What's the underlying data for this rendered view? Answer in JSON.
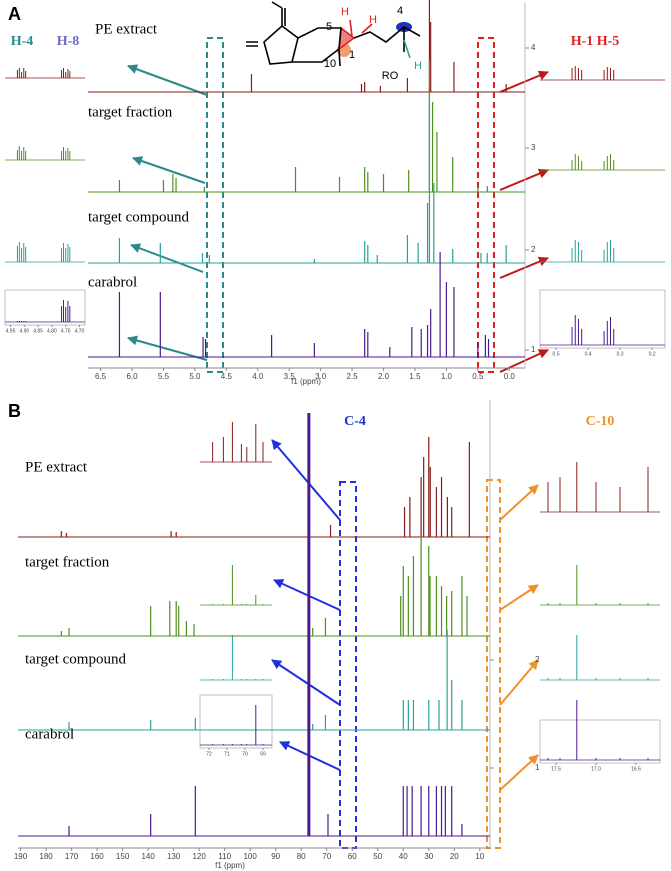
{
  "chart_data": [
    {
      "type": "spectrum",
      "panel": "A",
      "x_label": "f1 (ppm)",
      "xlim": [
        6.7,
        -0.25
      ],
      "xticks": [
        6.5,
        {
          "value": 6,
          "label": "6.0"
        },
        5.5,
        {
          "value": 5,
          "label": "5.0"
        },
        4.5,
        {
          "value": 4,
          "label": "4.0"
        },
        3.5,
        {
          "value": 3,
          "label": "3.0"
        },
        2.5,
        {
          "value": 2,
          "label": "2.0"
        },
        1.5,
        {
          "value": 1,
          "label": "1.0"
        },
        0.5,
        {
          "value": 0,
          "label": "0.0"
        }
      ],
      "yticks": [
        1,
        2,
        3,
        4
      ],
      "series": [
        {
          "name": "PE extract",
          "color": "#8b1a1a",
          "x": [
            4.1,
            2.35,
            2.3,
            2.05,
            1.62,
            1.27,
            1.25,
            0.88,
            0.05
          ],
          "values": [
            18,
            8,
            10,
            6,
            14,
            92,
            70,
            30,
            8
          ]
        },
        {
          "name": "target fraction",
          "color": "#4e8f1e",
          "x": [
            6.2,
            5.5,
            5.35,
            5.3,
            4.85,
            3.4,
            2.7,
            2.3,
            2.25,
            2.0,
            1.6,
            1.27,
            1.22,
            1.15,
            0.9,
            0.5,
            0.35
          ],
          "values": [
            12,
            12,
            18,
            14,
            5,
            25,
            15,
            25,
            20,
            18,
            22,
            132,
            90,
            60,
            35,
            6,
            6
          ]
        },
        {
          "name": "target compound",
          "color": "#2aa19a",
          "x": [
            6.2,
            5.55,
            4.88,
            4.77,
            3.1,
            2.3,
            2.25,
            2.1,
            1.62,
            1.45,
            1.3,
            1.27,
            1.2,
            0.9,
            0.45,
            0.35,
            0.05
          ],
          "values": [
            25,
            20,
            10,
            8,
            4,
            22,
            18,
            8,
            28,
            20,
            60,
            170,
            80,
            14,
            10,
            10,
            18
          ]
        },
        {
          "name": "carabrol",
          "color": "#4b1a8e",
          "x": [
            6.2,
            5.55,
            4.87,
            4.83,
            3.78,
            3.1,
            2.3,
            2.25,
            1.9,
            1.55,
            1.4,
            1.3,
            1.25,
            1.1,
            1.0,
            0.88,
            0.5,
            0.38,
            0.33
          ],
          "values": [
            65,
            65,
            20,
            18,
            22,
            14,
            28,
            25,
            10,
            30,
            28,
            32,
            48,
            105,
            75,
            70,
            15,
            22,
            18
          ]
        }
      ],
      "annotations": [
        "H-4",
        "H-8",
        "H-1 H-5"
      ],
      "structure_labels": [
        "5",
        "H",
        "H",
        "1",
        "10",
        "4",
        "RO",
        "H"
      ],
      "insets": [
        {
          "xlim": [
            4.97,
            4.68
          ],
          "xticks": [
            4.95,
            {
              "value": 4.9,
              "label": "4.90"
            },
            4.85,
            {
              "value": 4.8,
              "label": "4.80"
            },
            4.75,
            {
              "value": 4.7,
              "label": "4.70"
            }
          ],
          "x": [
            4.925,
            4.918,
            4.91,
            4.902,
            4.895,
            4.765,
            4.758,
            4.75,
            4.742,
            4.735
          ],
          "series": [
            {
              "values": [
                8,
                10,
                6,
                10,
                7,
                8,
                10,
                6,
                9,
                7
              ]
            },
            {
              "values": [
                10,
                14,
                9,
                13,
                9,
                9,
                13,
                9,
                12,
                9
              ]
            },
            {
              "values": [
                16,
                20,
                14,
                19,
                15,
                14,
                19,
                14,
                18,
                15
              ]
            },
            {
              "values": [
                1,
                1,
                1,
                1,
                1,
                16,
                22,
                15,
                21,
                16
              ]
            }
          ]
        },
        {
          "xlim": [
            0.55,
            0.16
          ],
          "xticks": [
            0.5,
            0.4,
            0.3,
            0.2
          ],
          "x": [
            0.45,
            0.44,
            0.43,
            0.42,
            0.35,
            0.34,
            0.33,
            0.32
          ],
          "series": [
            {
              "values": [
                12,
                14,
                12,
                10,
                10,
                13,
                12,
                10
              ]
            },
            {
              "values": [
                10,
                16,
                14,
                9,
                9,
                14,
                16,
                10
              ]
            },
            {
              "values": [
                14,
                22,
                20,
                12,
                12,
                20,
                22,
                14
              ]
            },
            {
              "values": [
                18,
                30,
                26,
                16,
                14,
                24,
                28,
                16
              ]
            }
          ]
        }
      ]
    },
    {
      "type": "spectrum",
      "panel": "B",
      "x_label": "f1 (ppm)",
      "xlim": [
        191,
        6
      ],
      "xticks": [
        190,
        180,
        170,
        160,
        150,
        140,
        130,
        120,
        110,
        100,
        90,
        80,
        70,
        60,
        50,
        40,
        30,
        20,
        10
      ],
      "yticks": [
        1,
        2
      ],
      "series": [
        {
          "name": "PE extract",
          "color": "#8b1a1a",
          "x": [
            174,
            172,
            131,
            129,
            77.2,
            68.5,
            39.5,
            37.4,
            33,
            32,
            30,
            29.4,
            27,
            25,
            22.7,
            21,
            14.1
          ],
          "values": [
            6,
            4,
            6,
            5,
            8,
            12,
            30,
            40,
            60,
            80,
            100,
            70,
            50,
            60,
            40,
            30,
            95
          ]
        },
        {
          "name": "target fraction",
          "color": "#4e8f1e",
          "x": [
            174,
            171,
            139,
            131.5,
            129,
            128,
            125,
            122,
            75.5,
            70.5,
            41,
            40,
            38,
            36,
            33,
            30,
            29.5,
            27,
            25,
            23,
            21,
            17,
            15
          ],
          "values": [
            5,
            8,
            30,
            35,
            35,
            30,
            15,
            12,
            8,
            18,
            40,
            70,
            60,
            80,
            100,
            90,
            60,
            60,
            50,
            40,
            45,
            60,
            40
          ]
        },
        {
          "name": "target compound",
          "color": "#2aa19a",
          "x": [
            171,
            139,
            121.5,
            75.5,
            70.5,
            40,
            38,
            36,
            30,
            26,
            22.8,
            21,
            17
          ],
          "values": [
            8,
            10,
            12,
            6,
            15,
            30,
            30,
            30,
            30,
            30,
            100,
            50,
            30
          ]
        },
        {
          "name": "carabrol",
          "color": "#4b1a8e",
          "x": [
            171,
            139,
            121.5,
            77,
            69.5,
            40,
            38.5,
            36.5,
            33,
            30,
            27,
            25,
            23.5,
            21,
            17
          ],
          "values": [
            10,
            22,
            50,
            423,
            22,
            50,
            50,
            50,
            50,
            50,
            50,
            50,
            50,
            50,
            12
          ]
        }
      ],
      "annotations": [
        "C-4",
        "C-10"
      ],
      "insets": [
        {
          "xlim": [
            72.5,
            68.5
          ],
          "xticks": [
            72,
            71,
            70,
            69
          ],
          "x": [
            71.8,
            71.2,
            70.7,
            70.2,
            69.9,
            69.4,
            69.0
          ],
          "series": [
            {
              "values": [
                20,
                25,
                40,
                18,
                15,
                38,
                20
              ]
            },
            {
              "values": [
                1,
                1,
                40,
                1,
                1,
                10,
                1
              ]
            },
            {
              "values": [
                1,
                1,
                45,
                1,
                1,
                1,
                1
              ]
            },
            {
              "values": [
                1,
                1,
                1,
                1,
                1,
                40,
                1
              ]
            }
          ]
        },
        {
          "xlim": [
            17.7,
            16.2
          ],
          "xticks": [
            17.5,
            {
              "value": 17,
              "label": "17.0"
            },
            16.5
          ],
          "x": [
            17.6,
            17.45,
            17.24,
            17.0,
            16.7,
            16.35
          ],
          "series": [
            {
              "values": [
                30,
                35,
                50,
                30,
                25,
                45
              ]
            },
            {
              "values": [
                2,
                2,
                40,
                2,
                2,
                2
              ]
            },
            {
              "values": [
                2,
                2,
                45,
                2,
                2,
                2
              ]
            },
            {
              "values": [
                2,
                2,
                60,
                2,
                2,
                2
              ]
            }
          ]
        }
      ]
    }
  ]
}
